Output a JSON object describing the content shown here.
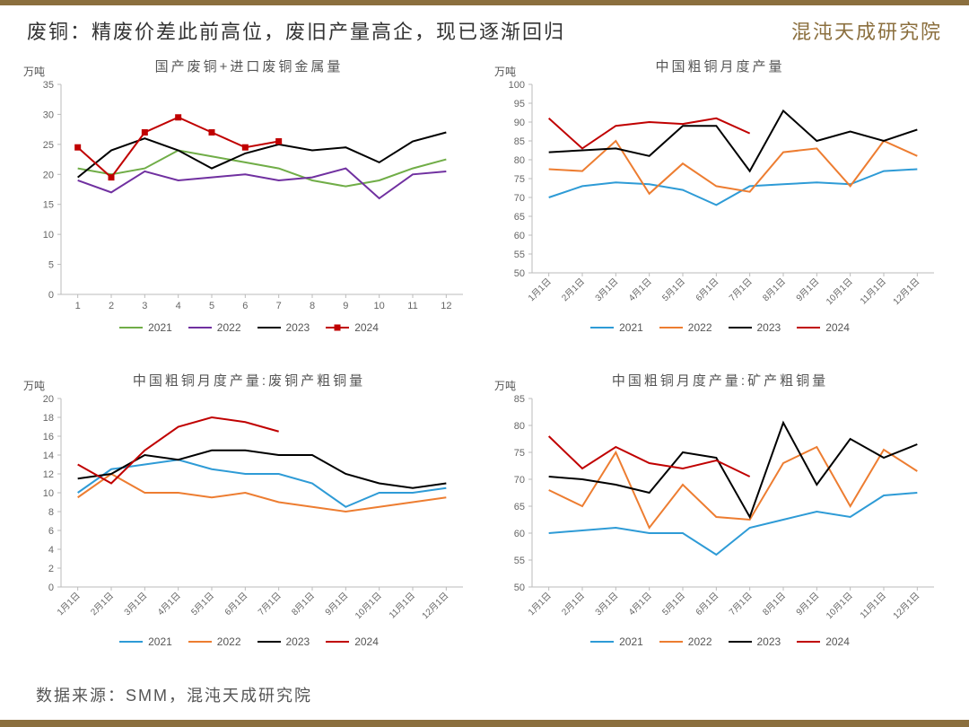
{
  "header": {
    "title": "废铜：精废价差此前高位，废旧产量高企，现已逐渐回归",
    "logo": "混沌天成研究院"
  },
  "source": "数据来源：SMM，混沌天成研究院",
  "colors": {
    "s2021_a": "#70ad47",
    "s2022_a": "#7030a0",
    "s2023": "#000000",
    "s2024": "#c00000",
    "s2021_b": "#2e9bd6",
    "s2022_b": "#ed7d31",
    "axis": "#bbbbbb",
    "border": "#8b6f3e"
  },
  "chart_tl": {
    "title": "国产废铜+进口废铜金属量",
    "ylabel": "万吨",
    "ylim": [
      0,
      35
    ],
    "ytick_step": 5,
    "xcats": [
      "1",
      "2",
      "3",
      "4",
      "5",
      "6",
      "7",
      "8",
      "9",
      "10",
      "11",
      "12"
    ],
    "series": [
      {
        "name": "2021",
        "color": "#70ad47",
        "marker": false,
        "data": [
          21,
          20,
          21,
          24,
          23,
          22,
          21,
          19,
          18,
          19,
          21,
          22.5
        ]
      },
      {
        "name": "2022",
        "color": "#7030a0",
        "marker": false,
        "data": [
          19,
          17,
          20.5,
          19,
          19.5,
          20,
          19,
          19.5,
          21,
          16,
          20,
          20.5
        ]
      },
      {
        "name": "2023",
        "color": "#000000",
        "marker": false,
        "data": [
          19.5,
          24,
          26,
          24,
          21,
          23.5,
          25,
          24,
          24.5,
          22,
          25.5,
          27
        ]
      },
      {
        "name": "2024",
        "color": "#c00000",
        "marker": true,
        "data": [
          24.5,
          19.5,
          27,
          29.5,
          27,
          24.5,
          25.5
        ]
      }
    ]
  },
  "chart_tr": {
    "title": "中国粗铜月度产量",
    "ylabel": "万吨",
    "ylim": [
      50,
      100
    ],
    "ytick_step": 5,
    "xcats": [
      "1月1日",
      "2月1日",
      "3月1日",
      "4月1日",
      "5月1日",
      "6月1日",
      "7月1日",
      "8月1日",
      "9月1日",
      "10月1日",
      "11月1日",
      "12月1日"
    ],
    "series": [
      {
        "name": "2021",
        "color": "#2e9bd6",
        "marker": false,
        "data": [
          70,
          73,
          74,
          73.5,
          72,
          68,
          73,
          73.5,
          74,
          73.5,
          77,
          77.5
        ]
      },
      {
        "name": "2022",
        "color": "#ed7d31",
        "marker": false,
        "data": [
          77.5,
          77,
          85,
          71,
          79,
          73,
          71.5,
          82,
          83,
          73,
          85,
          81
        ]
      },
      {
        "name": "2023",
        "color": "#000000",
        "marker": false,
        "data": [
          82,
          82.5,
          83,
          81,
          89,
          89,
          77,
          93,
          85,
          87.5,
          85,
          88
        ]
      },
      {
        "name": "2024",
        "color": "#c00000",
        "marker": false,
        "data": [
          91,
          83,
          89,
          90,
          89.5,
          91,
          87
        ]
      }
    ]
  },
  "chart_bl": {
    "title": "中国粗铜月度产量:废铜产粗铜量",
    "ylabel": "万吨",
    "ylim": [
      0,
      20
    ],
    "ytick_step": 2,
    "xcats": [
      "1月1日",
      "2月1日",
      "3月1日",
      "4月1日",
      "5月1日",
      "6月1日",
      "7月1日",
      "8月1日",
      "9月1日",
      "10月1日",
      "11月1日",
      "12月1日"
    ],
    "series": [
      {
        "name": "2021",
        "color": "#2e9bd6",
        "marker": false,
        "data": [
          10,
          12.5,
          13,
          13.5,
          12.5,
          12,
          12,
          11,
          8.5,
          10,
          10,
          10.5
        ]
      },
      {
        "name": "2022",
        "color": "#ed7d31",
        "marker": false,
        "data": [
          9.5,
          12,
          10,
          10,
          9.5,
          10,
          9,
          8.5,
          8,
          8.5,
          9,
          9.5
        ]
      },
      {
        "name": "2023",
        "color": "#000000",
        "marker": false,
        "data": [
          11.5,
          12,
          14,
          13.5,
          14.5,
          14.5,
          14,
          14,
          12,
          11,
          10.5,
          11
        ]
      },
      {
        "name": "2024",
        "color": "#c00000",
        "marker": false,
        "data": [
          13,
          11,
          14.5,
          17,
          18,
          17.5,
          16.5
        ]
      }
    ]
  },
  "chart_br": {
    "title": "中国粗铜月度产量:矿产粗铜量",
    "ylabel": "万吨",
    "ylim": [
      50,
      85
    ],
    "ytick_step": 5,
    "xcats": [
      "1月1日",
      "2月1日",
      "3月1日",
      "4月1日",
      "5月1日",
      "6月1日",
      "7月1日",
      "8月1日",
      "9月1日",
      "10月1日",
      "11月1日",
      "12月1日"
    ],
    "series": [
      {
        "name": "2021",
        "color": "#2e9bd6",
        "marker": false,
        "data": [
          60,
          60.5,
          61,
          60,
          60,
          56,
          61,
          62.5,
          64,
          63,
          67,
          67.5
        ]
      },
      {
        "name": "2022",
        "color": "#ed7d31",
        "marker": false,
        "data": [
          68,
          65,
          75,
          61,
          69,
          63,
          62.5,
          73,
          76,
          65,
          75.5,
          71.5
        ]
      },
      {
        "name": "2023",
        "color": "#000000",
        "marker": false,
        "data": [
          70.5,
          70,
          69,
          67.5,
          75,
          74,
          63,
          80.5,
          69,
          77.5,
          74,
          76.5
        ]
      },
      {
        "name": "2024",
        "color": "#c00000",
        "marker": false,
        "data": [
          78,
          72,
          76,
          73,
          72,
          73.5,
          70.5
        ]
      }
    ]
  }
}
